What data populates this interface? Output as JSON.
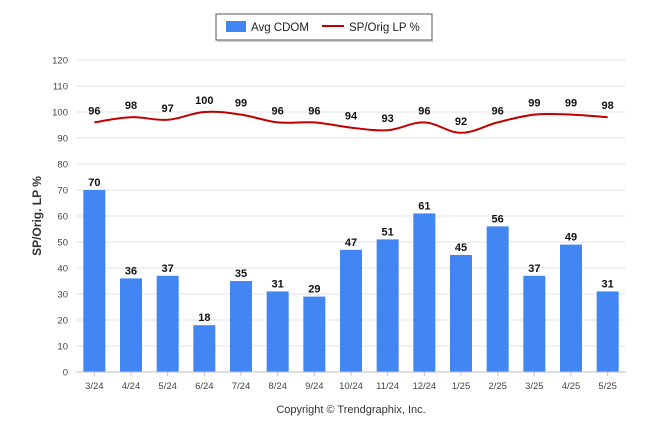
{
  "chart_data": {
    "type": "bar",
    "categories": [
      "3/24",
      "4/24",
      "5/24",
      "6/24",
      "7/24",
      "8/24",
      "9/24",
      "10/24",
      "11/24",
      "12/24",
      "1/25",
      "2/25",
      "3/25",
      "4/25",
      "5/25"
    ],
    "series": [
      {
        "name": "Avg CDOM",
        "type": "bar",
        "color": "#4286f4",
        "values": [
          70,
          36,
          37,
          18,
          35,
          31,
          29,
          47,
          51,
          61,
          45,
          56,
          37,
          49,
          31
        ]
      },
      {
        "name": "SP/Orig LP %",
        "type": "line",
        "color": "#c00000",
        "values": [
          96,
          98,
          97,
          100,
          99,
          96,
          96,
          94,
          93,
          96,
          92,
          96,
          99,
          99,
          98
        ]
      }
    ],
    "title": "",
    "xlabel": "",
    "ylabel": "SP/Orig. LP %",
    "ylim": [
      0,
      120
    ],
    "yticks": [
      0,
      10,
      20,
      30,
      40,
      50,
      60,
      70,
      80,
      90,
      100,
      110,
      120
    ],
    "grid": true,
    "legend": "top-center"
  },
  "footer": {
    "copyright": "Copyright © Trendgraphix, Inc."
  }
}
